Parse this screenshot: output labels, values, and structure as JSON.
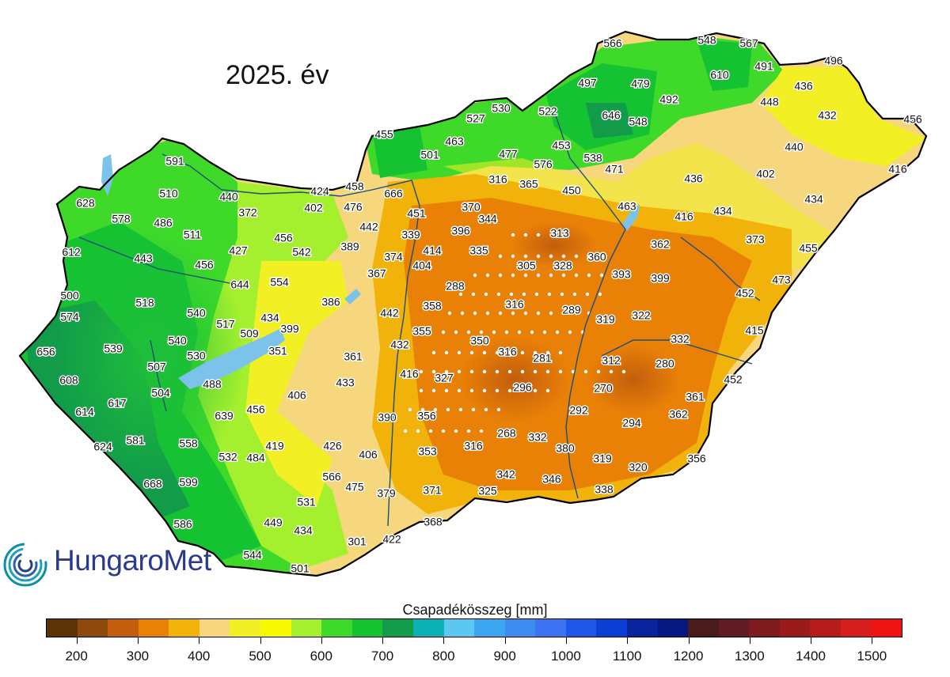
{
  "title": "2025. év",
  "logo": {
    "text": "HungaroMet"
  },
  "legend": {
    "title": "Csapadékösszeg [mm]",
    "min": 150,
    "max": 1550,
    "colors": [
      "#5a3306",
      "#8e4a0c",
      "#c25e0c",
      "#ea8107",
      "#f1b20a",
      "#f7d77d",
      "#f3ef25",
      "#f8f800",
      "#a4f02e",
      "#3fd92a",
      "#15c232",
      "#129c4a",
      "#0bb1b5",
      "#5cc8f2",
      "#3da6f2",
      "#3f8cf0",
      "#3d73f2",
      "#1f57e8",
      "#0c3fd3",
      "#08239c",
      "#071780",
      "#4a1b1b",
      "#621c24",
      "#7f1a1f",
      "#9b1a1a",
      "#b81b1b",
      "#d51d1d",
      "#f01313"
    ],
    "ticks": [
      200,
      300,
      400,
      500,
      600,
      700,
      800,
      900,
      1000,
      1100,
      1200,
      1300,
      1400,
      1500
    ]
  },
  "stations": [
    "566",
    "548",
    "567",
    "496",
    "491",
    "610",
    "436",
    "497",
    "479",
    "448",
    "492",
    "432",
    "456",
    "530",
    "522",
    "646",
    "548",
    "527",
    "455",
    "453",
    "463",
    "501",
    "477",
    "576",
    "538",
    "471",
    "440",
    "416",
    "436",
    "402",
    "316",
    "365",
    "450",
    "458",
    "424",
    "666",
    "476",
    "402",
    "372",
    "440",
    "628",
    "591",
    "510",
    "578",
    "486",
    "511",
    "612",
    "443",
    "451",
    "370",
    "344",
    "463",
    "416",
    "434",
    "434",
    "442",
    "339",
    "396",
    "313",
    "456",
    "542",
    "427",
    "389",
    "374",
    "414",
    "335",
    "362",
    "373",
    "456",
    "644",
    "554",
    "367",
    "404",
    "305",
    "328",
    "360",
    "393",
    "399",
    "455",
    "500",
    "518",
    "288",
    "473",
    "386",
    "358",
    "316",
    "289",
    "452",
    "574",
    "540",
    "517",
    "434",
    "399",
    "509",
    "442",
    "355",
    "319",
    "322",
    "656",
    "539",
    "540",
    "530",
    "351",
    "432",
    "350",
    "316",
    "281",
    "312",
    "332",
    "415",
    "280",
    "361",
    "507",
    "608",
    "504",
    "488",
    "416",
    "327",
    "296",
    "270",
    "452",
    "617",
    "614",
    "406",
    "639",
    "456",
    "433",
    "390",
    "356",
    "292",
    "294",
    "361",
    "362",
    "624",
    "581",
    "558",
    "532",
    "484",
    "419",
    "426",
    "268",
    "332",
    "316",
    "353",
    "406",
    "380",
    "319",
    "320",
    "356",
    "668",
    "599",
    "566",
    "475",
    "342",
    "346",
    "379",
    "371",
    "325",
    "338",
    "531",
    "449",
    "434",
    "368",
    "586",
    "544",
    "301",
    "422",
    "501"
  ]
}
